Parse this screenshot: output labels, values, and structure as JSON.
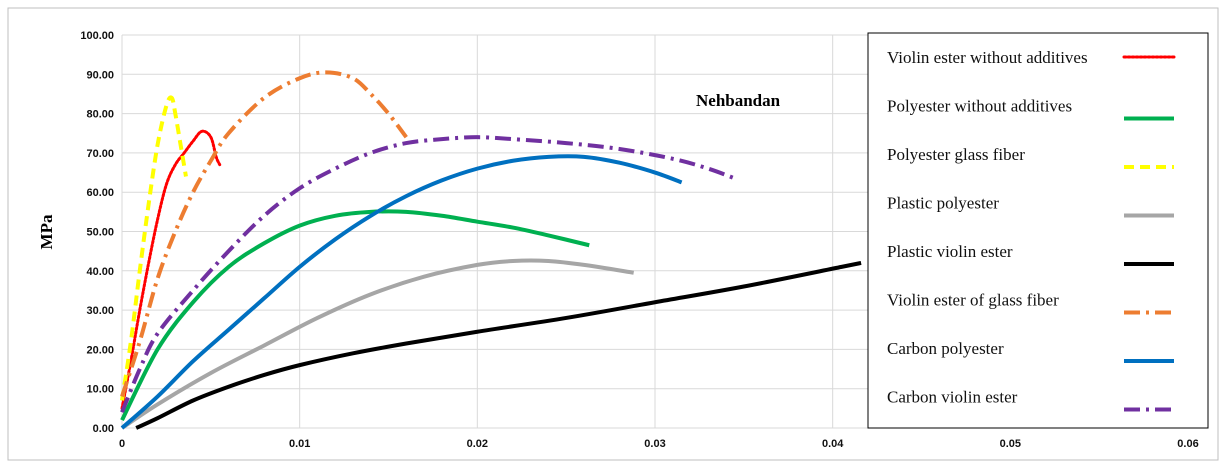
{
  "chart_data": {
    "type": "line",
    "title": "",
    "xlabel": "",
    "ylabel": "MPa",
    "annotation": "Nehbandan",
    "xlim": [
      0,
      0.06
    ],
    "ylim": [
      0,
      100
    ],
    "x_ticks": [
      0,
      0.01,
      0.02,
      0.03,
      0.04,
      0.05,
      0.06
    ],
    "x_tick_labels": [
      "0",
      "0.01",
      "0.02",
      "0.03",
      "0.04",
      "0.05",
      "0.06"
    ],
    "y_ticks": [
      0,
      10,
      20,
      30,
      40,
      50,
      60,
      70,
      80,
      90,
      100
    ],
    "y_tick_labels": [
      "0.00",
      "10.00",
      "20.00",
      "30.00",
      "40.00",
      "50.00",
      "60.00",
      "70.00",
      "80.00",
      "90.00",
      "100.00"
    ],
    "grid": true,
    "legend_position": "right",
    "series": [
      {
        "name": "Violin ester without additives",
        "color": "#ff0000",
        "style": "dotted",
        "points": [
          [
            0,
            5
          ],
          [
            0.0005,
            17
          ],
          [
            0.001,
            30
          ],
          [
            0.0015,
            42
          ],
          [
            0.002,
            53
          ],
          [
            0.0025,
            62
          ],
          [
            0.003,
            67
          ],
          [
            0.0035,
            70
          ],
          [
            0.004,
            73
          ],
          [
            0.0045,
            75.5
          ],
          [
            0.005,
            74
          ],
          [
            0.0053,
            69
          ],
          [
            0.0055,
            67
          ]
        ]
      },
      {
        "name": "Polyester without additives",
        "color": "#00b050",
        "style": "solid",
        "points": [
          [
            0,
            2
          ],
          [
            0.002,
            20
          ],
          [
            0.004,
            32
          ],
          [
            0.006,
            41
          ],
          [
            0.008,
            47
          ],
          [
            0.01,
            51.5
          ],
          [
            0.012,
            54
          ],
          [
            0.014,
            55
          ],
          [
            0.016,
            55
          ],
          [
            0.018,
            54
          ],
          [
            0.02,
            52.5
          ],
          [
            0.022,
            51
          ],
          [
            0.024,
            49
          ],
          [
            0.0263,
            46.5
          ]
        ]
      },
      {
        "name": "Polyester glass fiber",
        "color": "#ffff00",
        "style": "dashed",
        "points": [
          [
            0,
            7
          ],
          [
            0.0005,
            22
          ],
          [
            0.001,
            40
          ],
          [
            0.0015,
            57
          ],
          [
            0.002,
            72
          ],
          [
            0.0025,
            82
          ],
          [
            0.0028,
            84
          ],
          [
            0.003,
            80
          ],
          [
            0.0033,
            72
          ],
          [
            0.0036,
            64
          ]
        ]
      },
      {
        "name": "Plastic polyester",
        "color": "#a6a6a6",
        "style": "solid",
        "points": [
          [
            0,
            0
          ],
          [
            0.002,
            6
          ],
          [
            0.005,
            14
          ],
          [
            0.008,
            21
          ],
          [
            0.011,
            28
          ],
          [
            0.014,
            34
          ],
          [
            0.017,
            38.5
          ],
          [
            0.02,
            41.5
          ],
          [
            0.022,
            42.5
          ],
          [
            0.024,
            42.5
          ],
          [
            0.026,
            41.5
          ],
          [
            0.0288,
            39.5
          ]
        ]
      },
      {
        "name": "Plastic violin ester",
        "color": "#000000",
        "style": "solid",
        "points": [
          [
            0.0008,
            0
          ],
          [
            0.002,
            2.5
          ],
          [
            0.004,
            7
          ],
          [
            0.006,
            10.5
          ],
          [
            0.008,
            13.5
          ],
          [
            0.01,
            16
          ],
          [
            0.013,
            19
          ],
          [
            0.016,
            21.5
          ],
          [
            0.02,
            24.5
          ],
          [
            0.025,
            28
          ],
          [
            0.03,
            32
          ],
          [
            0.035,
            36
          ],
          [
            0.0405,
            41
          ],
          [
            0.0416,
            42
          ]
        ]
      },
      {
        "name": "Violin ester of glass fiber",
        "color": "#ed7d31",
        "style": "dash-dot",
        "points": [
          [
            0,
            8
          ],
          [
            0.001,
            22
          ],
          [
            0.002,
            38
          ],
          [
            0.003,
            50
          ],
          [
            0.004,
            60
          ],
          [
            0.005,
            68
          ],
          [
            0.006,
            75
          ],
          [
            0.008,
            84
          ],
          [
            0.01,
            89
          ],
          [
            0.0115,
            90.5
          ],
          [
            0.013,
            89
          ],
          [
            0.014,
            85
          ],
          [
            0.015,
            80
          ],
          [
            0.016,
            74
          ]
        ]
      },
      {
        "name": "Carbon polyester",
        "color": "#0070c0",
        "style": "solid",
        "points": [
          [
            0,
            0
          ],
          [
            0.002,
            8
          ],
          [
            0.004,
            17
          ],
          [
            0.006,
            25
          ],
          [
            0.008,
            33
          ],
          [
            0.01,
            41
          ],
          [
            0.012,
            48
          ],
          [
            0.014,
            54
          ],
          [
            0.016,
            59
          ],
          [
            0.018,
            63
          ],
          [
            0.02,
            66
          ],
          [
            0.022,
            68
          ],
          [
            0.024,
            69
          ],
          [
            0.026,
            69
          ],
          [
            0.028,
            67.5
          ],
          [
            0.03,
            65
          ],
          [
            0.0315,
            62.5
          ]
        ]
      },
      {
        "name": "Carbon violin ester",
        "color": "#7030a0",
        "style": "dash-dot",
        "points": [
          [
            0,
            4
          ],
          [
            0.001,
            15
          ],
          [
            0.002,
            24
          ],
          [
            0.004,
            35
          ],
          [
            0.006,
            45
          ],
          [
            0.008,
            54
          ],
          [
            0.01,
            61
          ],
          [
            0.012,
            66
          ],
          [
            0.014,
            70
          ],
          [
            0.016,
            72.5
          ],
          [
            0.018,
            73.5
          ],
          [
            0.02,
            74
          ],
          [
            0.022,
            73.5
          ],
          [
            0.025,
            72.5
          ],
          [
            0.028,
            71
          ],
          [
            0.031,
            68.5
          ],
          [
            0.033,
            66
          ],
          [
            0.0345,
            63.5
          ]
        ]
      }
    ]
  }
}
